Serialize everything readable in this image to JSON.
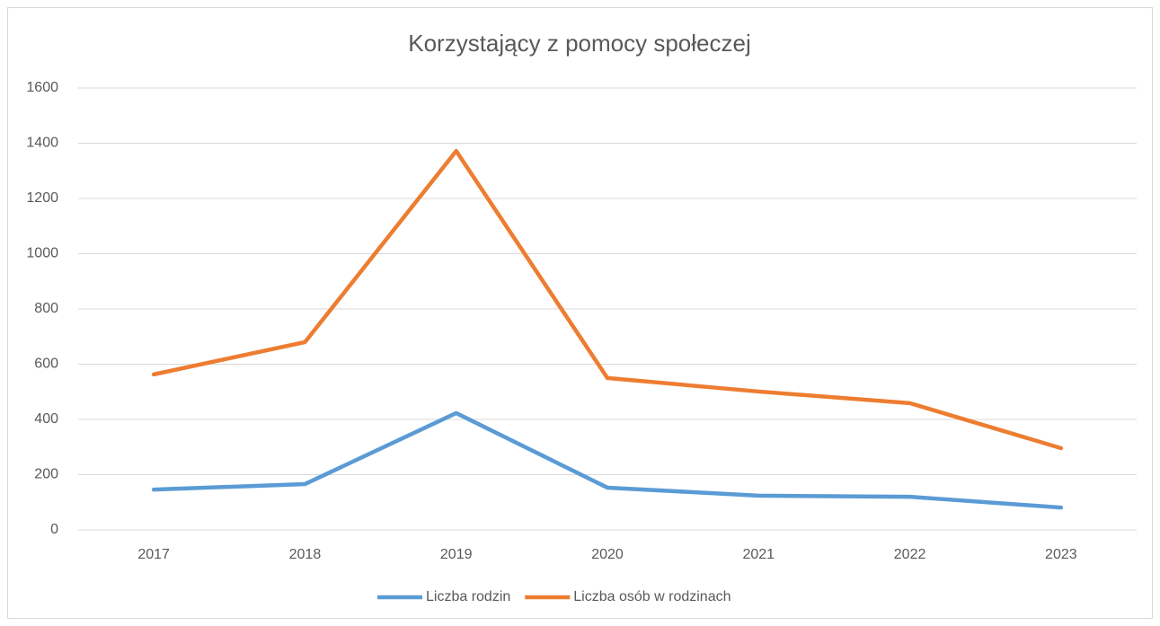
{
  "chart_data": {
    "type": "line",
    "title": "Korzystający z pomocy społeczej",
    "categories": [
      "2017",
      "2018",
      "2019",
      "2020",
      "2021",
      "2022",
      "2023"
    ],
    "series": [
      {
        "name": "Liczba rodzin",
        "color": "#5b9bd5",
        "values": [
          146,
          166,
          423,
          153,
          124,
          120,
          81
        ]
      },
      {
        "name": "Liczba osób w rodzinach",
        "color": "#ed7d31",
        "values": [
          563,
          680,
          1372,
          550,
          501,
          459,
          296
        ]
      }
    ],
    "ylim": [
      0,
      1600
    ],
    "yticks": [
      0,
      200,
      400,
      600,
      800,
      1000,
      1200,
      1400,
      1600
    ],
    "grid": true,
    "legend": "bottom"
  }
}
